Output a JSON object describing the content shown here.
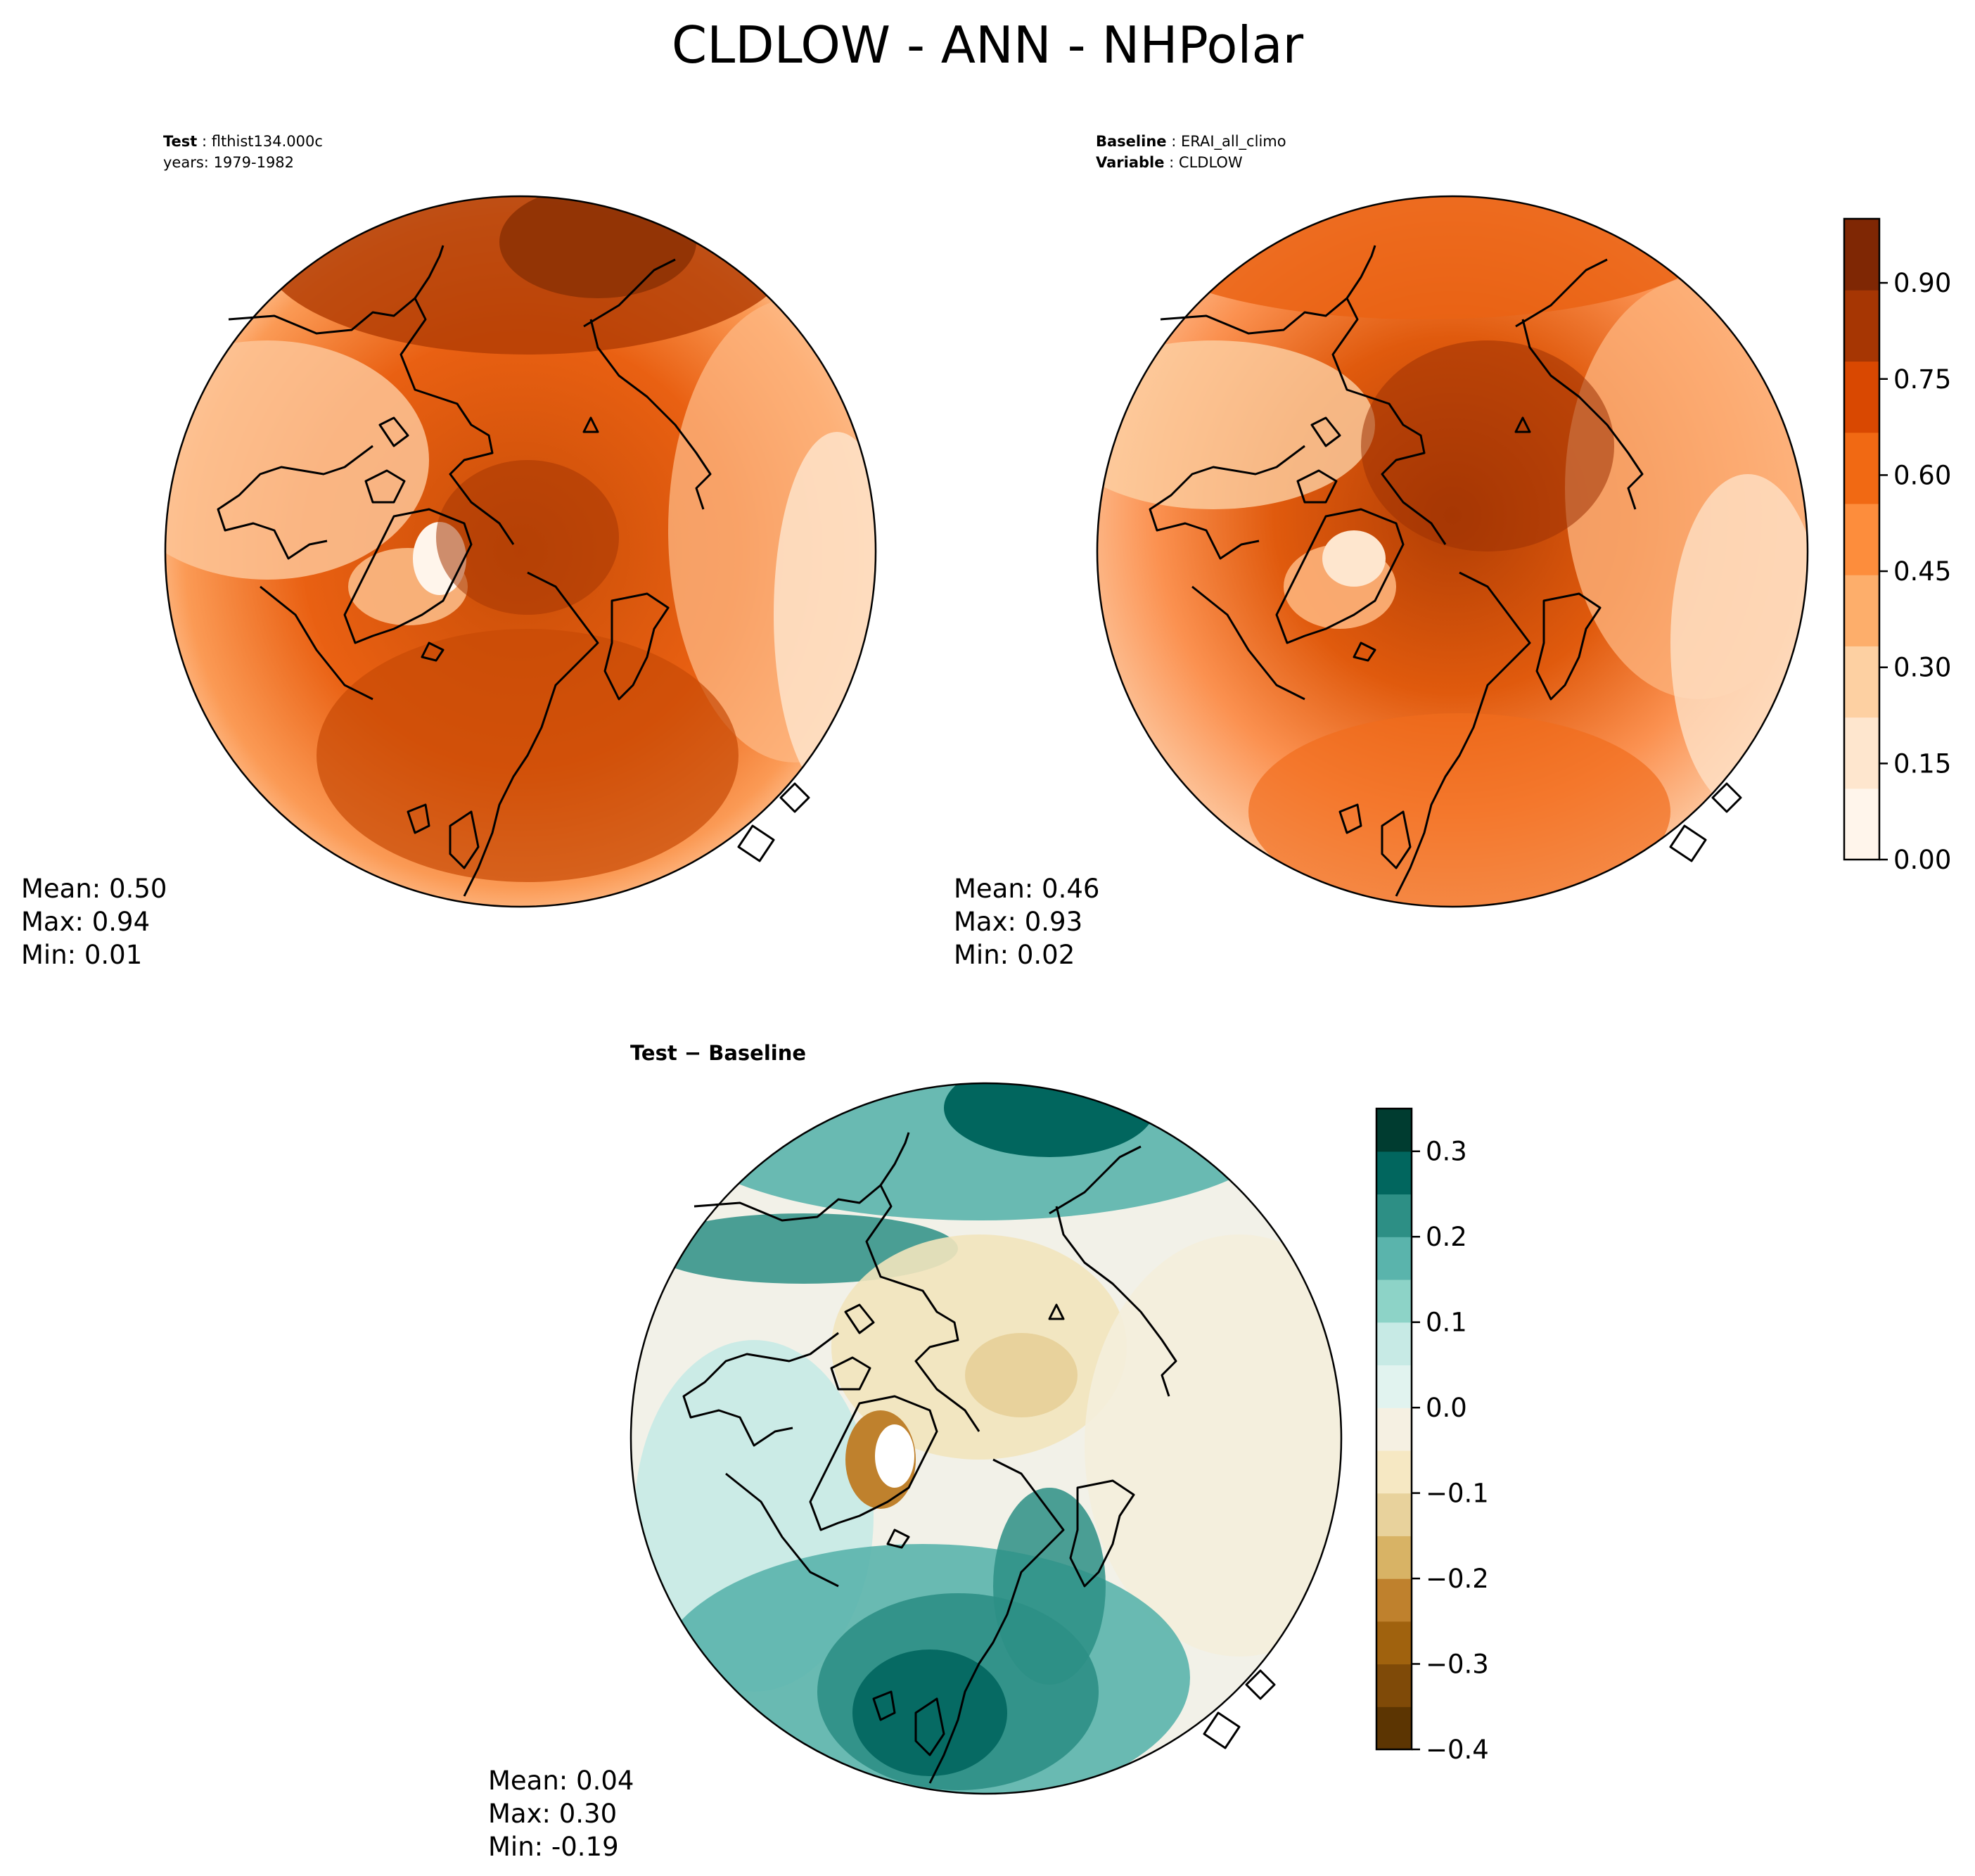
{
  "title": "CLDLOW - ANN - NHPolar",
  "test": {
    "label": "Test",
    "name": "flthist134.000c",
    "years_label": "years",
    "years": "1979-1982",
    "stats": {
      "mean": "Mean:  0.50",
      "max": "Max:  0.94",
      "min": "Min:  0.01"
    }
  },
  "baseline": {
    "label": "Baseline",
    "name": "ERAI_all_climo",
    "variable_label": "Variable",
    "variable": "CLDLOW",
    "stats": {
      "mean": "Mean:  0.46",
      "max": "Max:  0.93",
      "min": "Min:  0.02"
    }
  },
  "difference": {
    "title": "Test − Baseline",
    "stats": {
      "mean": "Mean:  0.04",
      "max": "Max:  0.30",
      "min": "Min: -0.19"
    }
  },
  "chart_data": [
    {
      "type": "heatmap",
      "projection": "north-polar-stereographic",
      "panel": "Test",
      "colorbar_ticks": [
        "0.00",
        "0.15",
        "0.30",
        "0.45",
        "0.60",
        "0.75",
        "0.90"
      ],
      "colorbar_range": [
        0.0,
        1.0
      ],
      "colormap": [
        "#fff5eb",
        "#fee6ce",
        "#fdd0a2",
        "#fdae6b",
        "#fd8d3c",
        "#f16913",
        "#d94801",
        "#a63603",
        "#7f2704"
      ],
      "stats": {
        "mean": 0.5,
        "max": 0.94,
        "min": 0.01
      }
    },
    {
      "type": "heatmap",
      "projection": "north-polar-stereographic",
      "panel": "Baseline",
      "colorbar_ticks": [
        "0.00",
        "0.15",
        "0.30",
        "0.45",
        "0.60",
        "0.75",
        "0.90"
      ],
      "colorbar_range": [
        0.0,
        1.0
      ],
      "colormap": [
        "#fff5eb",
        "#fee6ce",
        "#fdd0a2",
        "#fdae6b",
        "#fd8d3c",
        "#f16913",
        "#d94801",
        "#a63603",
        "#7f2704"
      ],
      "stats": {
        "mean": 0.46,
        "max": 0.93,
        "min": 0.02
      }
    },
    {
      "type": "heatmap",
      "projection": "north-polar-stereographic",
      "panel": "Test − Baseline",
      "colorbar_ticks": [
        "0.3",
        "0.2",
        "0.1",
        "0.0",
        "−0.1",
        "−0.2",
        "−0.3",
        "−0.4"
      ],
      "colorbar_tick_values": [
        0.3,
        0.2,
        0.1,
        0.0,
        -0.1,
        -0.2,
        -0.3,
        -0.4
      ],
      "colorbar_range": [
        -0.4,
        0.35
      ],
      "colormap": [
        "#5c3502",
        "#7f4a08",
        "#a0620e",
        "#bf812d",
        "#d8b365",
        "#e8d29c",
        "#f6e8c3",
        "#f5f0e2",
        "#e1f3ef",
        "#c7eae5",
        "#8dd3c7",
        "#5ab4ac",
        "#2d8f85",
        "#01665e",
        "#003c30"
      ],
      "stats": {
        "mean": 0.04,
        "max": 0.3,
        "min": -0.19
      }
    }
  ],
  "colors": {
    "oranges": [
      "#fff5eb",
      "#fee6ce",
      "#fdd0a2",
      "#fdae6b",
      "#fd8d3c",
      "#f16913",
      "#d94801",
      "#a63603",
      "#7f2704"
    ],
    "brbg": [
      "#5c3502",
      "#7f4a08",
      "#a0620e",
      "#bf812d",
      "#d8b365",
      "#e8d29c",
      "#f6e8c3",
      "#f5f0e2",
      "#e1f3ef",
      "#c7eae5",
      "#8dd3c7",
      "#5ab4ac",
      "#2d8f85",
      "#01665e",
      "#003c30"
    ]
  }
}
